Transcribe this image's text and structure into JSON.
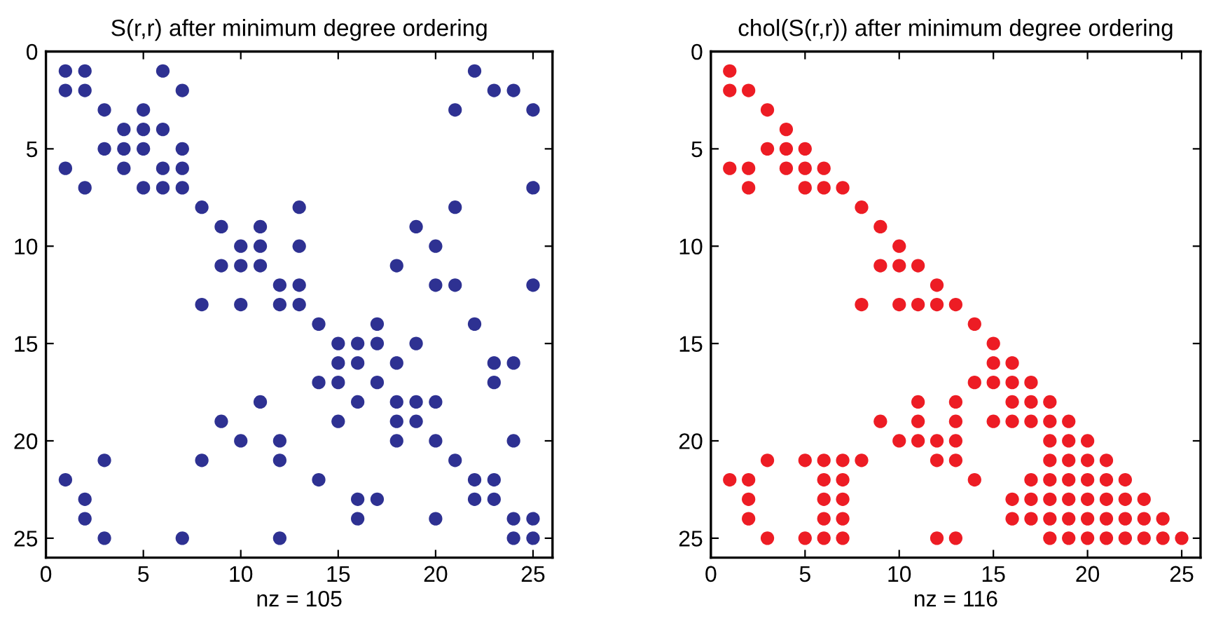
{
  "chart_data": [
    {
      "type": "scatter",
      "title": "S(r,r) after minimum degree ordering",
      "xlabel": "nz = 105",
      "marker": "circle",
      "grid": false,
      "xlim": [
        0,
        26
      ],
      "ylim": [
        26,
        0
      ],
      "xticks": [
        0,
        5,
        10,
        15,
        20,
        25
      ],
      "yticks": [
        0,
        5,
        10,
        15,
        20,
        25
      ],
      "series": [
        {
          "color": "#2e3192",
          "x": [
            1,
            2,
            6,
            22,
            1,
            2,
            7,
            23,
            24,
            3,
            5,
            21,
            25,
            4,
            5,
            6,
            3,
            4,
            5,
            7,
            1,
            4,
            6,
            7,
            2,
            5,
            6,
            7,
            25,
            8,
            13,
            21,
            9,
            11,
            19,
            10,
            11,
            13,
            20,
            9,
            10,
            11,
            18,
            12,
            13,
            20,
            21,
            25,
            8,
            10,
            12,
            13,
            14,
            17,
            22,
            15,
            16,
            17,
            19,
            15,
            16,
            18,
            23,
            24,
            14,
            15,
            17,
            23,
            11,
            16,
            18,
            19,
            20,
            9,
            15,
            18,
            19,
            10,
            12,
            18,
            20,
            24,
            3,
            8,
            12,
            21,
            1,
            14,
            22,
            23,
            2,
            16,
            17,
            22,
            23,
            2,
            16,
            20,
            24,
            25,
            3,
            7,
            12,
            24,
            25
          ],
          "values": [
            1,
            1,
            1,
            1,
            2,
            2,
            2,
            2,
            2,
            3,
            3,
            3,
            3,
            4,
            4,
            4,
            5,
            5,
            5,
            5,
            6,
            6,
            6,
            6,
            7,
            7,
            7,
            7,
            7,
            8,
            8,
            8,
            9,
            9,
            9,
            10,
            10,
            10,
            10,
            11,
            11,
            11,
            11,
            12,
            12,
            12,
            12,
            12,
            13,
            13,
            13,
            13,
            14,
            14,
            14,
            15,
            15,
            15,
            15,
            16,
            16,
            16,
            16,
            16,
            17,
            17,
            17,
            17,
            18,
            18,
            18,
            18,
            18,
            19,
            19,
            19,
            19,
            20,
            20,
            20,
            20,
            20,
            21,
            21,
            21,
            21,
            22,
            22,
            22,
            22,
            23,
            23,
            23,
            23,
            23,
            24,
            24,
            24,
            24,
            24,
            25,
            25,
            25,
            25,
            25
          ]
        }
      ]
    },
    {
      "type": "scatter",
      "title": "chol(S(r,r)) after minimum degree ordering",
      "xlabel": "nz = 116",
      "marker": "circle",
      "grid": false,
      "xlim": [
        0,
        26
      ],
      "ylim": [
        26,
        0
      ],
      "xticks": [
        0,
        5,
        10,
        15,
        20,
        25
      ],
      "yticks": [
        0,
        5,
        10,
        15,
        20,
        25
      ],
      "series": [
        {
          "color": "#ed1c24",
          "x": [
            1,
            1,
            2,
            3,
            4,
            3,
            4,
            5,
            1,
            2,
            4,
            5,
            6,
            2,
            5,
            6,
            7,
            8,
            9,
            10,
            9,
            10,
            11,
            12,
            8,
            10,
            11,
            12,
            13,
            14,
            15,
            15,
            16,
            14,
            15,
            16,
            17,
            11,
            13,
            16,
            17,
            18,
            9,
            11,
            13,
            15,
            16,
            17,
            18,
            19,
            10,
            11,
            12,
            13,
            18,
            19,
            20,
            3,
            5,
            6,
            7,
            8,
            12,
            13,
            18,
            19,
            20,
            21,
            1,
            2,
            6,
            7,
            14,
            17,
            18,
            19,
            20,
            21,
            22,
            2,
            6,
            7,
            16,
            17,
            18,
            19,
            20,
            21,
            22,
            23,
            2,
            6,
            7,
            16,
            17,
            18,
            19,
            20,
            21,
            22,
            23,
            24,
            3,
            5,
            6,
            7,
            12,
            13,
            18,
            19,
            20,
            21,
            22,
            23,
            24,
            25
          ],
          "values": [
            1,
            2,
            2,
            3,
            4,
            5,
            5,
            5,
            6,
            6,
            6,
            6,
            6,
            7,
            7,
            7,
            7,
            8,
            9,
            10,
            11,
            11,
            11,
            12,
            13,
            13,
            13,
            13,
            13,
            14,
            15,
            16,
            16,
            17,
            17,
            17,
            17,
            18,
            18,
            18,
            18,
            18,
            19,
            19,
            19,
            19,
            19,
            19,
            19,
            19,
            20,
            20,
            20,
            20,
            20,
            20,
            20,
            21,
            21,
            21,
            21,
            21,
            21,
            21,
            21,
            21,
            21,
            21,
            22,
            22,
            22,
            22,
            22,
            22,
            22,
            22,
            22,
            22,
            22,
            23,
            23,
            23,
            23,
            23,
            23,
            23,
            23,
            23,
            23,
            23,
            24,
            24,
            24,
            24,
            24,
            24,
            24,
            24,
            24,
            24,
            24,
            24,
            25,
            25,
            25,
            25,
            25,
            25,
            25,
            25,
            25,
            25,
            25,
            25,
            25,
            25
          ]
        }
      ]
    }
  ]
}
